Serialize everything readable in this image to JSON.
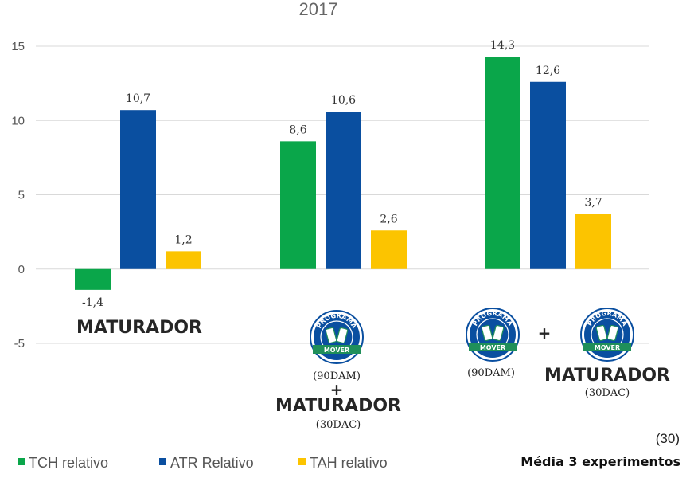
{
  "chart_data": {
    "type": "bar",
    "title": "2017",
    "categories": [
      "MATURADOR",
      "PROGRAMA MOVER (90DAM) + MATURADOR (30DAC)",
      "PROGRAMA MOVER (90DAM) + PROGRAMA MOVER MATURADOR (30DAC)"
    ],
    "series": [
      {
        "name": "TCH relativo",
        "color": "#0aa64a",
        "values": [
          -1.4,
          8.6,
          14.3
        ],
        "labels": [
          "-1,4",
          "8,6",
          "14,3"
        ]
      },
      {
        "name": "ATR Relativo",
        "color": "#0a4fa0",
        "values": [
          10.7,
          10.6,
          12.6
        ],
        "labels": [
          "10,7",
          "10,6",
          "12,6"
        ]
      },
      {
        "name": "TAH relativo",
        "color": "#fcc400",
        "values": [
          1.2,
          2.6,
          3.7
        ],
        "labels": [
          "1,2",
          "2,6",
          "3,7"
        ]
      }
    ],
    "ylim": [
      -5,
      15
    ],
    "yticks": [
      "15",
      "10",
      "5",
      "0",
      "-5"
    ],
    "grid": true,
    "legend_position": "bottom-left"
  },
  "annotations": {
    "group1": {
      "main": "MATURADOR"
    },
    "group2": {
      "sub1": "(90DAM)",
      "plus": "+",
      "main": "MATURADOR",
      "sub2": "(30DAC)"
    },
    "group3": {
      "sub1": "(90DAM)",
      "plus": "+",
      "main": "MATURADOR",
      "sub2": "(30DAC)"
    },
    "logo": {
      "top": "PROGRAMA",
      "bottom": "MOVER",
      "color": "#0a4fa0",
      "accent": "#1f8f5a"
    }
  },
  "footnote": {
    "ref": "(30)",
    "text": "Média 3 experimentos"
  }
}
